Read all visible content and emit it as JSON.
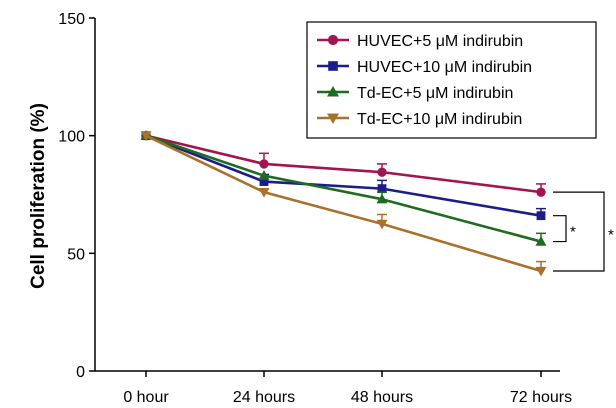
{
  "chart_data": {
    "type": "line",
    "title": "",
    "xlabel": "",
    "ylabel": "Cell proliferation (%)",
    "categories": [
      "0 hour",
      "24 hours",
      "48 hours",
      "72 hours"
    ],
    "ylim": [
      0,
      150
    ],
    "yticks": [
      "0",
      "50",
      "100",
      "150"
    ],
    "grid": false,
    "legend_position": "top-right",
    "series": [
      {
        "name": "HUVEC+5 μM indirubin",
        "values": [
          100,
          88,
          84.5,
          76
        ],
        "errors": [
          0,
          4.5,
          3.5,
          3.5
        ],
        "color": "#a4154f",
        "marker": "circle"
      },
      {
        "name": "HUVEC+10 μM indirubin",
        "values": [
          100,
          80.5,
          77.5,
          66
        ],
        "errors": [
          0,
          3,
          3.5,
          3
        ],
        "color": "#1c1c8c",
        "marker": "square"
      },
      {
        "name": "Td-EC+5 μM indirubin",
        "values": [
          100,
          83,
          73,
          55
        ],
        "errors": [
          0,
          0,
          3,
          3.5
        ],
        "color": "#1f6b1f",
        "marker": "triangle-up"
      },
      {
        "name": "Td-EC+10 μM indirubin",
        "values": [
          100,
          76,
          62.5,
          42.5
        ],
        "errors": [
          0,
          0,
          4,
          4
        ],
        "color": "#a8722c",
        "marker": "triangle-down"
      }
    ],
    "annotations": [
      {
        "text": "*",
        "between": [
          "HUVEC+10 μM indirubin",
          "Td-EC+5 μM indirubin"
        ],
        "at": "72 hours"
      },
      {
        "text": "*",
        "between": [
          "HUVEC+5 μM indirubin",
          "Td-EC+10 μM indirubin"
        ],
        "at": "72 hours"
      }
    ]
  }
}
